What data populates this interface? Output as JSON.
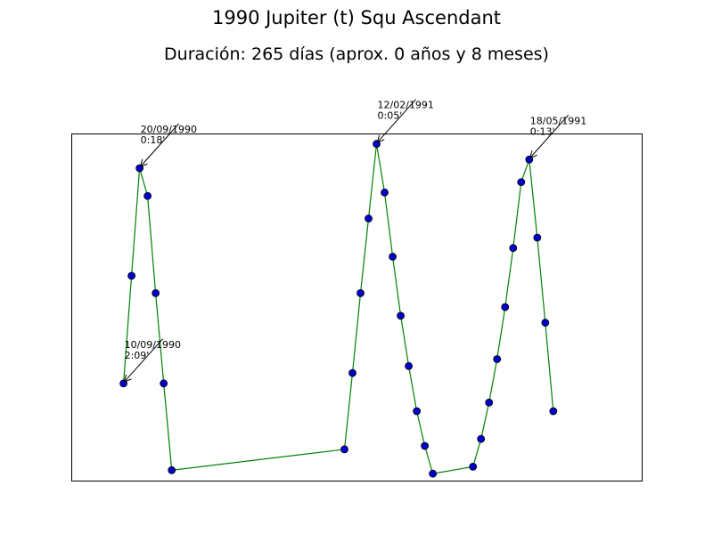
{
  "chart_data": {
    "type": "line",
    "title": "1990 Jupiter (t) Squ Ascendant",
    "subtitle": "Duración: 265 días (aprox. 0 años y 8 meses)",
    "xlabel": "",
    "ylabel": "",
    "grid": false,
    "line_color": "#008000",
    "marker_color": "#0000cc",
    "x_unit": "days from first point",
    "xlim": [
      -6.5,
      64.5
    ],
    "ylim": [
      0,
      1
    ],
    "points": [
      {
        "x": 0,
        "y": 0.28
      },
      {
        "x": 1,
        "y": 0.59
      },
      {
        "x": 2,
        "y": 0.9
      },
      {
        "x": 3,
        "y": 0.82
      },
      {
        "x": 4,
        "y": 0.54
      },
      {
        "x": 5,
        "y": 0.28
      },
      {
        "x": 6,
        "y": 0.03
      },
      {
        "x": 27.5,
        "y": 0.09
      },
      {
        "x": 28.5,
        "y": 0.31
      },
      {
        "x": 29.5,
        "y": 0.54
      },
      {
        "x": 30.5,
        "y": 0.755
      },
      {
        "x": 31.5,
        "y": 0.97
      },
      {
        "x": 32.5,
        "y": 0.83
      },
      {
        "x": 33.5,
        "y": 0.645
      },
      {
        "x": 34.5,
        "y": 0.475
      },
      {
        "x": 35.5,
        "y": 0.33
      },
      {
        "x": 36.5,
        "y": 0.2
      },
      {
        "x": 37.5,
        "y": 0.1
      },
      {
        "x": 38.5,
        "y": 0.02
      },
      {
        "x": 43.5,
        "y": 0.04
      },
      {
        "x": 44.5,
        "y": 0.12
      },
      {
        "x": 45.5,
        "y": 0.225
      },
      {
        "x": 46.5,
        "y": 0.35
      },
      {
        "x": 47.5,
        "y": 0.5
      },
      {
        "x": 48.5,
        "y": 0.67
      },
      {
        "x": 49.5,
        "y": 0.86
      },
      {
        "x": 50.5,
        "y": 0.925
      },
      {
        "x": 51.5,
        "y": 0.7
      },
      {
        "x": 52.5,
        "y": 0.455
      },
      {
        "x": 53.5,
        "y": 0.2
      }
    ],
    "annotations": [
      {
        "point_index": 0,
        "date": "10/09/1990",
        "value": "2:09'"
      },
      {
        "point_index": 2,
        "date": "20/09/1990",
        "value": "0:18'"
      },
      {
        "point_index": 11,
        "date": "12/02/1991",
        "value": "0:05'"
      },
      {
        "point_index": 26,
        "date": "18/05/1991",
        "value": "0:13'"
      }
    ]
  }
}
